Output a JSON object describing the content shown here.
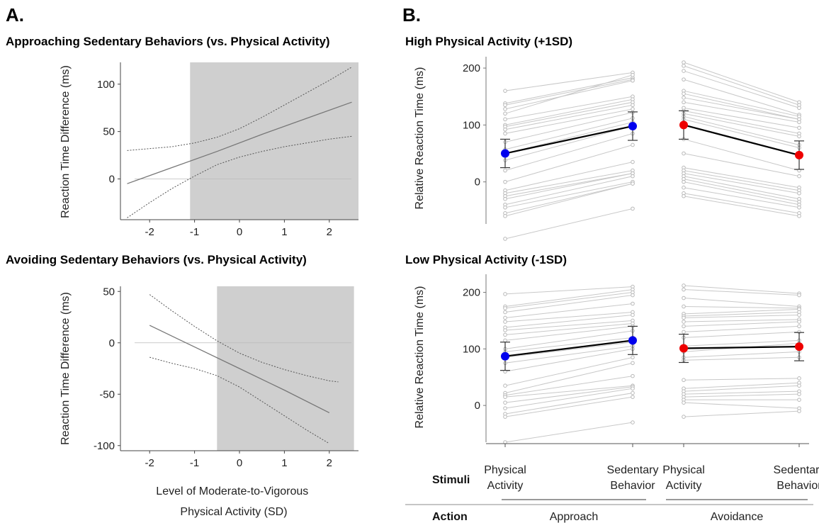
{
  "panel_labels": [
    "A.",
    "B."
  ],
  "chart_data": [
    {
      "type": "line",
      "title": "Approaching Sedentary Behaviors (vs. Physical Activity)",
      "ylabel": "Reaction Time Difference (ms)",
      "x_ticks": [
        "-2",
        "-1",
        "0",
        "1",
        "2"
      ],
      "y_ticks": [
        "0",
        "50",
        "100"
      ],
      "xlim": [
        -2.65,
        2.65
      ],
      "ylim": [
        -43,
        123
      ],
      "shaded_region_x": [
        -1.1,
        2.65
      ],
      "reference_line_y": 0,
      "series": [
        {
          "role": "estimate",
          "x": [
            -2.5,
            -1.5,
            -0.5,
            0.5,
            1.5,
            2.5
          ],
          "y": [
            -5,
            12,
            29,
            47,
            64,
            81
          ]
        },
        {
          "role": "upper_ci",
          "x": [
            -2.5,
            -1.5,
            -1,
            -0.5,
            0,
            0.5,
            1,
            1.5,
            2,
            2.5
          ],
          "y": [
            30,
            34,
            38,
            44,
            53,
            65,
            78,
            91,
            104,
            118
          ]
        },
        {
          "role": "lower_ci",
          "x": [
            -2.5,
            -2,
            -1.5,
            -1,
            -0.5,
            0,
            0.5,
            1,
            1.5,
            2,
            2.5
          ],
          "y": [
            -41,
            -25,
            -10,
            3,
            15,
            23,
            29,
            34,
            38,
            42,
            45
          ]
        }
      ]
    },
    {
      "type": "line",
      "title": "Avoiding Sedentary Behaviors (vs. Physical Activity)",
      "ylabel": "Reaction Time Difference (ms)",
      "xlabel": "Level of Moderate-to-Vigorous Physical Activity (SD)",
      "x_ticks": [
        "-2",
        "-1",
        "0",
        "1",
        "2"
      ],
      "y_ticks": [
        "-100",
        "-50",
        "0",
        "50"
      ],
      "xlim": [
        -2.65,
        2.65
      ],
      "ylim": [
        -105,
        55
      ],
      "shaded_region_x": [
        -0.5,
        2.55
      ],
      "reference_line_y": 0,
      "series": [
        {
          "role": "estimate",
          "x": [
            -2,
            -1,
            0,
            1,
            2
          ],
          "y": [
            17,
            -4,
            -25,
            -46,
            -68
          ]
        },
        {
          "role": "upper_ci",
          "x": [
            -2,
            -1.5,
            -1,
            -0.5,
            0,
            0.5,
            1,
            1.5,
            2,
            2.2
          ],
          "y": [
            47,
            31,
            16,
            2,
            -10,
            -19,
            -26,
            -32,
            -37,
            -38
          ]
        },
        {
          "role": "lower_ci",
          "x": [
            -2,
            -1.5,
            -1,
            -0.5,
            0,
            0.5,
            1,
            1.5,
            2
          ],
          "y": [
            -14,
            -20,
            -25,
            -32,
            -43,
            -57,
            -71,
            -85,
            -98
          ]
        }
      ]
    },
    {
      "type": "line",
      "title": "High Physical Activity (+1SD)",
      "ylabel": "Relative Reaction Time (ms)",
      "y_ticks": [
        "0",
        "100",
        "200"
      ],
      "ylim": [
        -110,
        220
      ],
      "groups": [
        {
          "action": "Approach",
          "color": "#0000ee",
          "means": [
            50,
            98
          ],
          "error": [
            25,
            25
          ],
          "pairs": [
            [
              160,
              192
            ],
            [
              138,
              183
            ],
            [
              135,
              180
            ],
            [
              128,
              178
            ],
            [
              120,
              188
            ],
            [
              110,
              150
            ],
            [
              100,
              145
            ],
            [
              97,
              140
            ],
            [
              92,
              135
            ],
            [
              85,
              128
            ],
            [
              70,
              122
            ],
            [
              57,
              112
            ],
            [
              50,
              105
            ],
            [
              38,
              98
            ],
            [
              20,
              85
            ],
            [
              0,
              65
            ],
            [
              -15,
              35
            ],
            [
              -20,
              20
            ],
            [
              -25,
              15
            ],
            [
              -30,
              15
            ],
            [
              -40,
              10
            ],
            [
              -45,
              0
            ],
            [
              -55,
              -3
            ],
            [
              -60,
              -3
            ],
            [
              -100,
              -47
            ]
          ]
        },
        {
          "action": "Avoidance",
          "color": "#ee0000",
          "means": [
            100,
            47
          ],
          "error": [
            25,
            25
          ],
          "pairs": [
            [
              210,
              140
            ],
            [
              204,
              135
            ],
            [
              195,
              130
            ],
            [
              180,
              118
            ],
            [
              160,
              115
            ],
            [
              155,
              110
            ],
            [
              148,
              110
            ],
            [
              140,
              105
            ],
            [
              130,
              95
            ],
            [
              125,
              85
            ],
            [
              120,
              80
            ],
            [
              115,
              65
            ],
            [
              110,
              60
            ],
            [
              75,
              20
            ],
            [
              50,
              10
            ],
            [
              25,
              -10
            ],
            [
              20,
              -15
            ],
            [
              15,
              -20
            ],
            [
              10,
              -30
            ],
            [
              5,
              -35
            ],
            [
              0,
              -40
            ],
            [
              -10,
              -45
            ],
            [
              -20,
              -55
            ],
            [
              -25,
              -60
            ]
          ]
        }
      ]
    },
    {
      "type": "line",
      "title": "Low Physical Activity (-1SD)",
      "ylabel": "Relative Reaction Time (ms)",
      "y_ticks": [
        "0",
        "100",
        "200"
      ],
      "ylim": [
        -65,
        232
      ],
      "x_categories": [
        "Physical Activity",
        "Sedentary Behavior",
        "Physical Activity",
        "Sedentary Behavior"
      ],
      "row_labels": {
        "stimuli": "Stimuli",
        "action": "Action"
      },
      "actions": [
        "Approach",
        "Avoidance"
      ],
      "groups": [
        {
          "action": "Approach",
          "color": "#0000ee",
          "means": [
            87,
            115
          ],
          "error": [
            25,
            25
          ],
          "pairs": [
            [
              197,
              210
            ],
            [
              175,
              205
            ],
            [
              172,
              200
            ],
            [
              165,
              195
            ],
            [
              155,
              180
            ],
            [
              148,
              165
            ],
            [
              138,
              160
            ],
            [
              133,
              150
            ],
            [
              125,
              145
            ],
            [
              115,
              140
            ],
            [
              100,
              132
            ],
            [
              95,
              120
            ],
            [
              85,
              112
            ],
            [
              75,
              105
            ],
            [
              60,
              100
            ],
            [
              35,
              85
            ],
            [
              22,
              75
            ],
            [
              18,
              52
            ],
            [
              15,
              35
            ],
            [
              5,
              33
            ],
            [
              -5,
              30
            ],
            [
              -15,
              22
            ],
            [
              -20,
              15
            ],
            [
              -65,
              -30
            ]
          ]
        },
        {
          "action": "Avoidance",
          "color": "#ee0000",
          "means": [
            101,
            104
          ],
          "error": [
            25,
            25
          ],
          "pairs": [
            [
              212,
              198
            ],
            [
              205,
              195
            ],
            [
              190,
              175
            ],
            [
              175,
              172
            ],
            [
              162,
              170
            ],
            [
              158,
              165
            ],
            [
              155,
              160
            ],
            [
              148,
              152
            ],
            [
              140,
              148
            ],
            [
              130,
              140
            ],
            [
              120,
              130
            ],
            [
              105,
              115
            ],
            [
              95,
              110
            ],
            [
              85,
              95
            ],
            [
              80,
              85
            ],
            [
              45,
              48
            ],
            [
              30,
              40
            ],
            [
              25,
              35
            ],
            [
              20,
              25
            ],
            [
              15,
              20
            ],
            [
              10,
              10
            ],
            [
              5,
              -5
            ],
            [
              -20,
              -10
            ]
          ]
        }
      ]
    }
  ]
}
